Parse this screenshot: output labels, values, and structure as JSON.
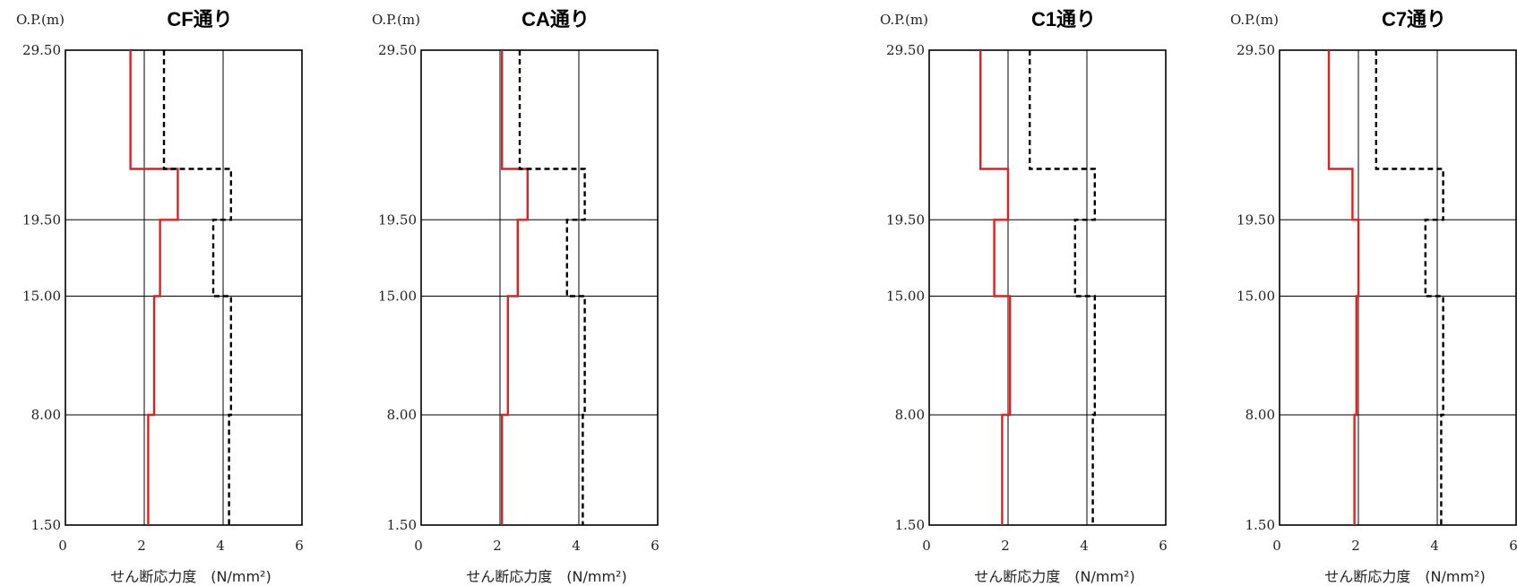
{
  "chart_data": [
    {
      "type": "line",
      "title": "CF通り",
      "y_unit_label": "O.P.(m)",
      "xlabel": "せん断応力度　(N/mm²)",
      "xlim": [
        0,
        6
      ],
      "x_ticks": [
        "0",
        "2",
        "4",
        "6"
      ],
      "y_ticks": [
        "29.50",
        "19.50",
        "15.00",
        "8.00",
        "1.50"
      ],
      "y_tick_values": [
        29.5,
        19.5,
        15.0,
        8.0,
        1.5
      ],
      "grid": true,
      "series": [
        {
          "style": "solid",
          "color": "#e02020",
          "points": [
            [
              1.65,
              29.5
            ],
            [
              1.65,
              22.5
            ],
            [
              2.85,
              22.5
            ],
            [
              2.85,
              19.5
            ],
            [
              2.4,
              19.5
            ],
            [
              2.4,
              15.0
            ],
            [
              2.25,
              15.0
            ],
            [
              2.25,
              8.0
            ],
            [
              2.1,
              8.0
            ],
            [
              2.1,
              1.5
            ]
          ]
        },
        {
          "style": "dashed",
          "color": "#000000",
          "points": [
            [
              2.5,
              29.5
            ],
            [
              2.5,
              22.5
            ],
            [
              4.2,
              22.5
            ],
            [
              4.2,
              19.5
            ],
            [
              3.75,
              19.5
            ],
            [
              3.75,
              15.0
            ],
            [
              4.2,
              15.0
            ],
            [
              4.2,
              8.0
            ],
            [
              4.15,
              8.0
            ],
            [
              4.15,
              1.5
            ]
          ]
        }
      ]
    },
    {
      "type": "line",
      "title": "CA通り",
      "y_unit_label": "O.P.(m)",
      "xlabel": "せん断応力度　(N/mm²)",
      "xlim": [
        0,
        6
      ],
      "x_ticks": [
        "0",
        "2",
        "4",
        "6"
      ],
      "y_ticks": [
        "29.50",
        "19.50",
        "15.00",
        "8.00",
        "1.50"
      ],
      "y_tick_values": [
        29.5,
        19.5,
        15.0,
        8.0,
        1.5
      ],
      "grid": true,
      "series": [
        {
          "style": "solid",
          "color": "#e02020",
          "points": [
            [
              2.05,
              29.5
            ],
            [
              2.05,
              22.5
            ],
            [
              2.7,
              22.5
            ],
            [
              2.7,
              19.5
            ],
            [
              2.45,
              19.5
            ],
            [
              2.45,
              15.0
            ],
            [
              2.2,
              15.0
            ],
            [
              2.2,
              8.0
            ],
            [
              2.05,
              8.0
            ],
            [
              2.05,
              1.5
            ]
          ]
        },
        {
          "style": "dashed",
          "color": "#000000",
          "points": [
            [
              2.5,
              29.5
            ],
            [
              2.5,
              22.5
            ],
            [
              4.15,
              22.5
            ],
            [
              4.15,
              19.5
            ],
            [
              3.7,
              19.5
            ],
            [
              3.7,
              15.0
            ],
            [
              4.15,
              15.0
            ],
            [
              4.15,
              8.0
            ],
            [
              4.1,
              8.0
            ],
            [
              4.1,
              1.5
            ]
          ]
        }
      ]
    },
    {
      "type": "line",
      "title": "C1通り",
      "y_unit_label": "O.P.(m)",
      "xlabel": "せん断応力度　(N/mm²)",
      "xlim": [
        0,
        6
      ],
      "x_ticks": [
        "0",
        "2",
        "4",
        "6"
      ],
      "y_ticks": [
        "29.50",
        "19.50",
        "15.00",
        "8.00",
        "1.50"
      ],
      "y_tick_values": [
        29.5,
        19.5,
        15.0,
        8.0,
        1.5
      ],
      "grid": true,
      "series": [
        {
          "style": "solid",
          "color": "#e02020",
          "points": [
            [
              1.3,
              29.5
            ],
            [
              1.3,
              22.5
            ],
            [
              2.0,
              22.5
            ],
            [
              2.0,
              19.5
            ],
            [
              1.65,
              19.5
            ],
            [
              1.65,
              15.0
            ],
            [
              2.05,
              15.0
            ],
            [
              2.05,
              8.0
            ],
            [
              1.85,
              8.0
            ],
            [
              1.85,
              1.5
            ]
          ]
        },
        {
          "style": "dashed",
          "color": "#000000",
          "points": [
            [
              2.55,
              29.5
            ],
            [
              2.55,
              22.5
            ],
            [
              4.2,
              22.5
            ],
            [
              4.2,
              19.5
            ],
            [
              3.7,
              19.5
            ],
            [
              3.7,
              15.0
            ],
            [
              4.2,
              15.0
            ],
            [
              4.2,
              8.0
            ],
            [
              4.15,
              8.0
            ],
            [
              4.15,
              1.5
            ]
          ]
        }
      ]
    },
    {
      "type": "line",
      "title": "C7通り",
      "y_unit_label": "O.P.(m)",
      "xlabel": "せん断応力度　(N/mm²)",
      "xlim": [
        0,
        6
      ],
      "x_ticks": [
        "0",
        "2",
        "4",
        "6"
      ],
      "y_ticks": [
        "29.50",
        "19.50",
        "15.00",
        "8.00",
        "1.50"
      ],
      "y_tick_values": [
        29.5,
        19.5,
        15.0,
        8.0,
        1.5
      ],
      "grid": true,
      "series": [
        {
          "style": "solid",
          "color": "#e02020",
          "points": [
            [
              1.25,
              29.5
            ],
            [
              1.25,
              22.5
            ],
            [
              1.85,
              22.5
            ],
            [
              1.85,
              19.5
            ],
            [
              2.0,
              19.5
            ],
            [
              2.0,
              15.0
            ],
            [
              1.95,
              15.0
            ],
            [
              1.95,
              8.0
            ],
            [
              1.9,
              8.0
            ],
            [
              1.9,
              1.5
            ]
          ]
        },
        {
          "style": "dashed",
          "color": "#000000",
          "points": [
            [
              2.45,
              29.5
            ],
            [
              2.45,
              22.5
            ],
            [
              4.15,
              22.5
            ],
            [
              4.15,
              19.5
            ],
            [
              3.7,
              19.5
            ],
            [
              3.7,
              15.0
            ],
            [
              4.15,
              15.0
            ],
            [
              4.15,
              8.0
            ],
            [
              4.1,
              8.0
            ],
            [
              4.1,
              1.5
            ]
          ]
        }
      ]
    }
  ]
}
